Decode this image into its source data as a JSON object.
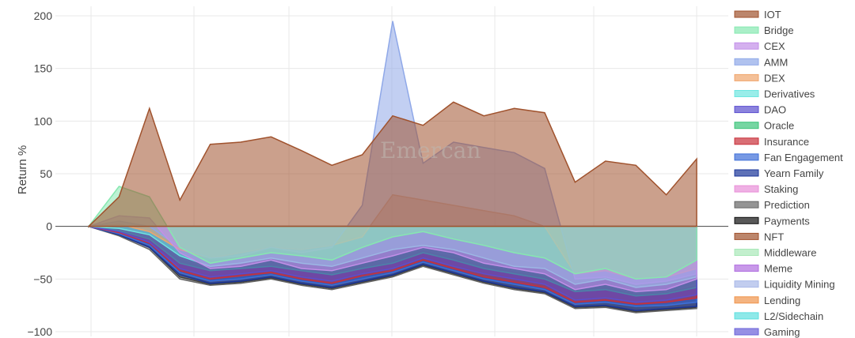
{
  "chart_data": {
    "type": "area",
    "title": "",
    "xlabel": "",
    "ylabel": "Return %",
    "ylim": [
      -100,
      200
    ],
    "yticks": [
      200,
      150,
      100,
      50,
      0,
      -50,
      -100
    ],
    "ytick_labels": [
      "200",
      "150",
      "100",
      "50",
      "0",
      "−50",
      "−100"
    ],
    "grid": true,
    "legend_position": "right",
    "watermark": "Emercan",
    "x_index": [
      0,
      10,
      20,
      30,
      40,
      50,
      60,
      70,
      80,
      90,
      100,
      110,
      120,
      130,
      140,
      150,
      160,
      170,
      180,
      190,
      200
    ],
    "series": [
      {
        "name": "IOT",
        "color": "#a0522d",
        "values": [
          0,
          28,
          112,
          25,
          78,
          80,
          85,
          72,
          58,
          68,
          105,
          96,
          118,
          105,
          112,
          108,
          42,
          62,
          58,
          30,
          64
        ]
      },
      {
        "name": "Bridge",
        "color": "#86e8b0",
        "values": [
          0,
          38,
          28,
          -20,
          -35,
          -30,
          -25,
          -28,
          -32,
          -20,
          -10,
          -5,
          -12,
          -18,
          -25,
          -30,
          -45,
          -40,
          -50,
          -48,
          -32
        ]
      },
      {
        "name": "CEX",
        "color": "#c28fe8",
        "values": [
          0,
          10,
          8,
          -25,
          -40,
          -38,
          -32,
          -40,
          -42,
          -35,
          -28,
          -20,
          -25,
          -35,
          -40,
          -45,
          -60,
          -55,
          -62,
          -60,
          -50
        ]
      },
      {
        "name": "AMM",
        "color": "#8fa8e8",
        "values": [
          0,
          5,
          0,
          -20,
          -30,
          -28,
          -20,
          -25,
          -20,
          20,
          195,
          60,
          80,
          75,
          70,
          55,
          -50,
          -48,
          -55,
          -52,
          -45
        ]
      },
      {
        "name": "DEX",
        "color": "#f0a56c",
        "values": [
          0,
          2,
          -5,
          -22,
          -30,
          -25,
          -20,
          -22,
          -18,
          -10,
          30,
          25,
          20,
          15,
          10,
          0,
          -45,
          -42,
          -50,
          -48,
          -40
        ]
      },
      {
        "name": "Derivatives",
        "color": "#6ee6e0",
        "values": [
          0,
          -2,
          -8,
          -28,
          -38,
          -35,
          -30,
          -35,
          -38,
          -30,
          -22,
          -18,
          -22,
          -30,
          -38,
          -40,
          -55,
          -50,
          -58,
          -55,
          -48
        ]
      },
      {
        "name": "DAO",
        "color": "#5a4ecf",
        "values": [
          0,
          -5,
          -15,
          -40,
          -48,
          -45,
          -42,
          -48,
          -52,
          -45,
          -40,
          -30,
          -38,
          -45,
          -50,
          -55,
          -70,
          -68,
          -72,
          -70,
          -65
        ]
      },
      {
        "name": "Oracle",
        "color": "#3cc47a",
        "values": [
          0,
          -4,
          -12,
          -35,
          -42,
          -40,
          -38,
          -42,
          -46,
          -40,
          -35,
          -25,
          -32,
          -40,
          -45,
          -50,
          -62,
          -60,
          -66,
          -64,
          -58
        ]
      },
      {
        "name": "Insurance",
        "color": "#c9303a",
        "values": [
          0,
          -6,
          -16,
          -42,
          -50,
          -47,
          -44,
          -50,
          -54,
          -47,
          -42,
          -32,
          -40,
          -48,
          -53,
          -58,
          -72,
          -70,
          -74,
          -72,
          -68
        ]
      },
      {
        "name": "Fan Engagement",
        "color": "#3d6ed8",
        "values": [
          0,
          -7,
          -18,
          -44,
          -52,
          -50,
          -46,
          -52,
          -56,
          -50,
          -44,
          -34,
          -42,
          -50,
          -55,
          -60,
          -74,
          -72,
          -76,
          -75,
          -72
        ]
      },
      {
        "name": "Yearn Family",
        "color": "#1a3499",
        "values": [
          0,
          -8,
          -20,
          -46,
          -54,
          -52,
          -48,
          -54,
          -58,
          -52,
          -46,
          -36,
          -44,
          -52,
          -58,
          -62,
          -76,
          -75,
          -80,
          -78,
          -76
        ]
      },
      {
        "name": "Staking",
        "color": "#e88fd8",
        "values": [
          0,
          -3,
          -10,
          -30,
          -40,
          -36,
          -32,
          -38,
          -40,
          -34,
          -28,
          -22,
          -28,
          -36,
          -42,
          -46,
          -60,
          -56,
          -64,
          -62,
          -55
        ]
      },
      {
        "name": "Prediction",
        "color": "#666666",
        "values": [
          0,
          -9,
          -22,
          -50,
          -56,
          -54,
          -50,
          -56,
          -60,
          -54,
          -48,
          -38,
          -46,
          -54,
          -60,
          -64,
          -78,
          -77,
          -82,
          -80,
          -78
        ]
      },
      {
        "name": "Payments",
        "color": "#111111",
        "values": [
          0,
          -8,
          -20,
          -48,
          -55,
          -53,
          -49,
          -55,
          -59,
          -53,
          -47,
          -37,
          -45,
          -53,
          -59,
          -63,
          -77,
          -76,
          -81,
          -79,
          -77
        ]
      },
      {
        "name": "NFT",
        "color": "#a0522d",
        "values": [
          0,
          -5,
          -12,
          -32,
          -42,
          -38,
          -34,
          -40,
          -44,
          -38,
          -32,
          -24,
          -30,
          -38,
          -44,
          -48,
          -64,
          -60,
          -68,
          -66,
          -60
        ]
      },
      {
        "name": "Middleware",
        "color": "#a8e8b8",
        "values": [
          0,
          -1,
          -6,
          -24,
          -32,
          -28,
          -24,
          -28,
          -30,
          -22,
          -15,
          -10,
          -15,
          -22,
          -30,
          -34,
          -48,
          -44,
          -52,
          -50,
          -40
        ]
      },
      {
        "name": "Meme",
        "color": "#b06ee0",
        "values": [
          0,
          -6,
          -15,
          -40,
          -48,
          -46,
          -42,
          -46,
          -50,
          -44,
          -38,
          -28,
          -36,
          -44,
          -50,
          -54,
          -68,
          -66,
          -70,
          -68,
          -62
        ]
      },
      {
        "name": "Liquidity Mining",
        "color": "#a8b8e8",
        "values": [
          0,
          -2,
          -8,
          -26,
          -34,
          -30,
          -26,
          -30,
          -34,
          -26,
          -20,
          -14,
          -20,
          -28,
          -34,
          -38,
          -52,
          -48,
          -56,
          -54,
          -45
        ]
      },
      {
        "name": "Lending",
        "color": "#f0944c",
        "values": [
          0,
          -4,
          -12,
          -36,
          -44,
          -42,
          -38,
          -44,
          -48,
          -42,
          -36,
          -26,
          -34,
          -42,
          -48,
          -52,
          -66,
          -64,
          -68,
          -66,
          -60
        ]
      },
      {
        "name": "L2/Sidechain",
        "color": "#5ee0e0",
        "values": [
          0,
          -3,
          -10,
          -32,
          -40,
          -38,
          -34,
          -40,
          -44,
          -36,
          -30,
          -20,
          -28,
          -36,
          -42,
          -46,
          -62,
          -58,
          -64,
          -62,
          -55
        ]
      },
      {
        "name": "Gaming",
        "color": "#6a60d8",
        "values": [
          0,
          -7,
          -17,
          -43,
          -51,
          -49,
          -45,
          -51,
          -55,
          -49,
          -43,
          -33,
          -41,
          -49,
          -54,
          -59,
          -73,
          -71,
          -75,
          -73,
          -70
        ]
      }
    ]
  }
}
